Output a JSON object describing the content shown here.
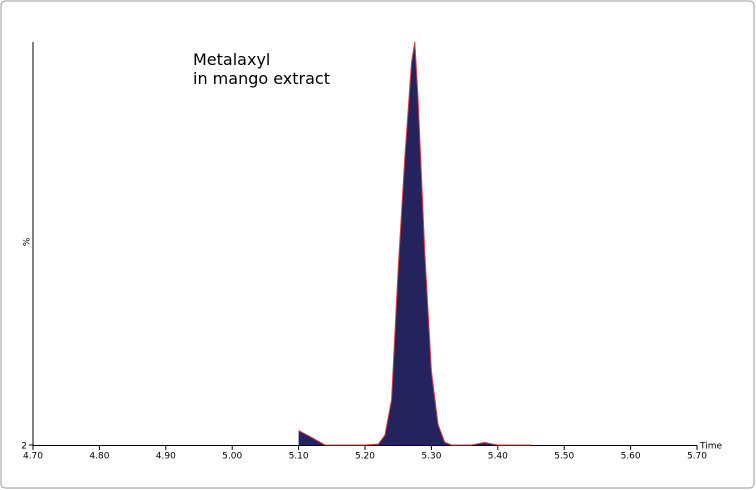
{
  "chart_data": {
    "type": "area",
    "annotations": [
      "Metalaxyl",
      "in mango extract"
    ],
    "xlabel": "Time",
    "ylabel": "%",
    "x": [
      5.1,
      5.12,
      5.14,
      5.2,
      5.22,
      5.23,
      5.24,
      5.25,
      5.26,
      5.27,
      5.275,
      5.28,
      5.29,
      5.3,
      5.31,
      5.32,
      5.33,
      5.36,
      5.38,
      5.4,
      5.45
    ],
    "series": [
      {
        "color": "#d9413f",
        "fill": "#24235e",
        "values": [
          5.5,
          3.8,
          2,
          2,
          2.2,
          4.4,
          13,
          45,
          72,
          95,
          100,
          86,
          49,
          20,
          7,
          2.7,
          2,
          2,
          2.6,
          2,
          2
        ]
      }
    ],
    "xlim": [
      4.7,
      5.7
    ],
    "xticks": [
      {
        "value": 4.7,
        "label": "4.70"
      },
      {
        "value": 4.8,
        "label": "4.80"
      },
      {
        "value": 4.9,
        "label": "4.90"
      },
      {
        "value": 5.0,
        "label": "5.00"
      },
      {
        "value": 5.1,
        "label": "5.10"
      },
      {
        "value": 5.2,
        "label": "5.20"
      },
      {
        "value": 5.3,
        "label": "5.30"
      },
      {
        "value": 5.4,
        "label": "5.40"
      },
      {
        "value": 5.5,
        "label": "5.50"
      },
      {
        "value": 5.6,
        "label": "5.60"
      },
      {
        "value": 5.7,
        "label": "5.70"
      }
    ],
    "ylim": [
      2,
      100
    ],
    "yticks": [
      2
    ]
  }
}
